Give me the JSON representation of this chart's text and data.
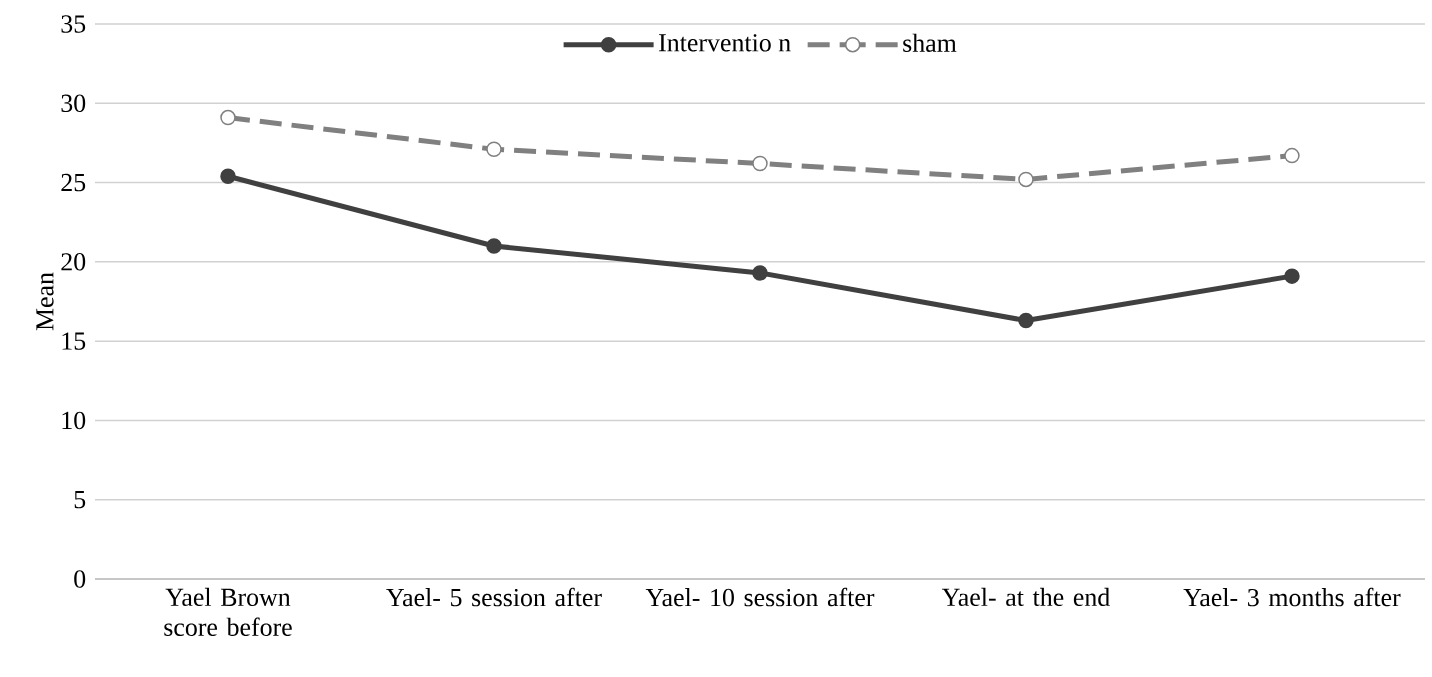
{
  "chart_data": {
    "type": "line",
    "ylabel": "Mean",
    "categories": [
      "Yael Brown score before",
      "Yael- 5 session after",
      "Yael- 10 session after",
      "Yael- at the end",
      "Yael- 3 months after"
    ],
    "series": [
      {
        "name": "Interventio n",
        "color": "#404040",
        "line_style": "solid",
        "values": [
          25.4,
          21.0,
          19.3,
          16.3,
          19.1
        ]
      },
      {
        "name": "sham",
        "color": "#808080",
        "line_style": "dashed",
        "values": [
          29.1,
          27.1,
          26.2,
          25.2,
          26.7
        ]
      }
    ],
    "ylim": [
      0,
      35
    ],
    "yticks": [
      0,
      5,
      10,
      15,
      20,
      25,
      30,
      35
    ],
    "grid": "y",
    "legend": "top",
    "marker": "circle"
  }
}
